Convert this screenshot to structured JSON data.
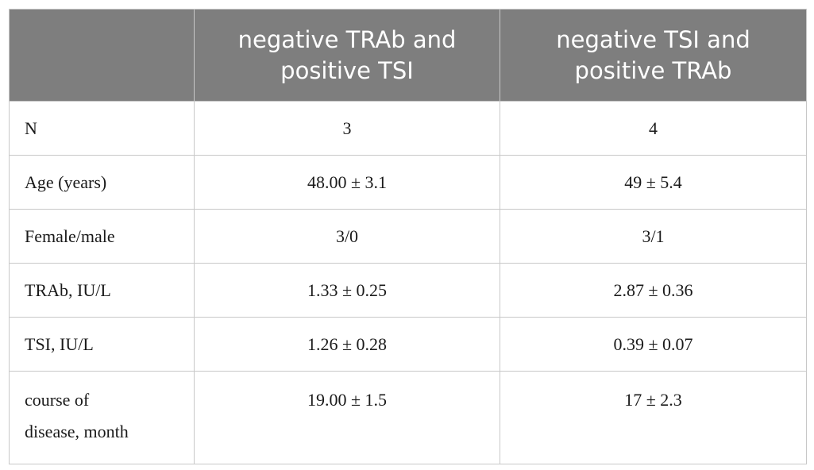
{
  "table": {
    "headers": [
      "",
      "negative TRAb and positive TSI",
      "negative TSI and positive TRAb"
    ],
    "header_lines": [
      [
        "negative TRAb and",
        "positive TSI"
      ],
      [
        "negative TSI and",
        "positive TRAb"
      ]
    ],
    "rows": [
      {
        "label": "N",
        "col1": "3",
        "col2": "4"
      },
      {
        "label": "Age (years)",
        "col1": "48.00 ± 3.1",
        "col2": "49 ± 5.4"
      },
      {
        "label": "Female/male",
        "col1": "3/0",
        "col2": "3/1"
      },
      {
        "label": "TRAb, IU/L",
        "col1": "1.33 ± 0.25",
        "col2": "2.87 ± 0.36"
      },
      {
        "label": "TSI, IU/L",
        "col1": "1.26 ± 0.28",
        "col2": "0.39 ± 0.07"
      },
      {
        "label_lines": [
          "course of",
          "disease, month"
        ],
        "col1": "19.00 ± 1.5",
        "col2": "17 ± 2.3"
      }
    ]
  },
  "colors": {
    "header_background": "#7e7e7e",
    "header_text": "#ffffff",
    "border": "#c8c8c8",
    "body_text": "#1a1a1a"
  }
}
